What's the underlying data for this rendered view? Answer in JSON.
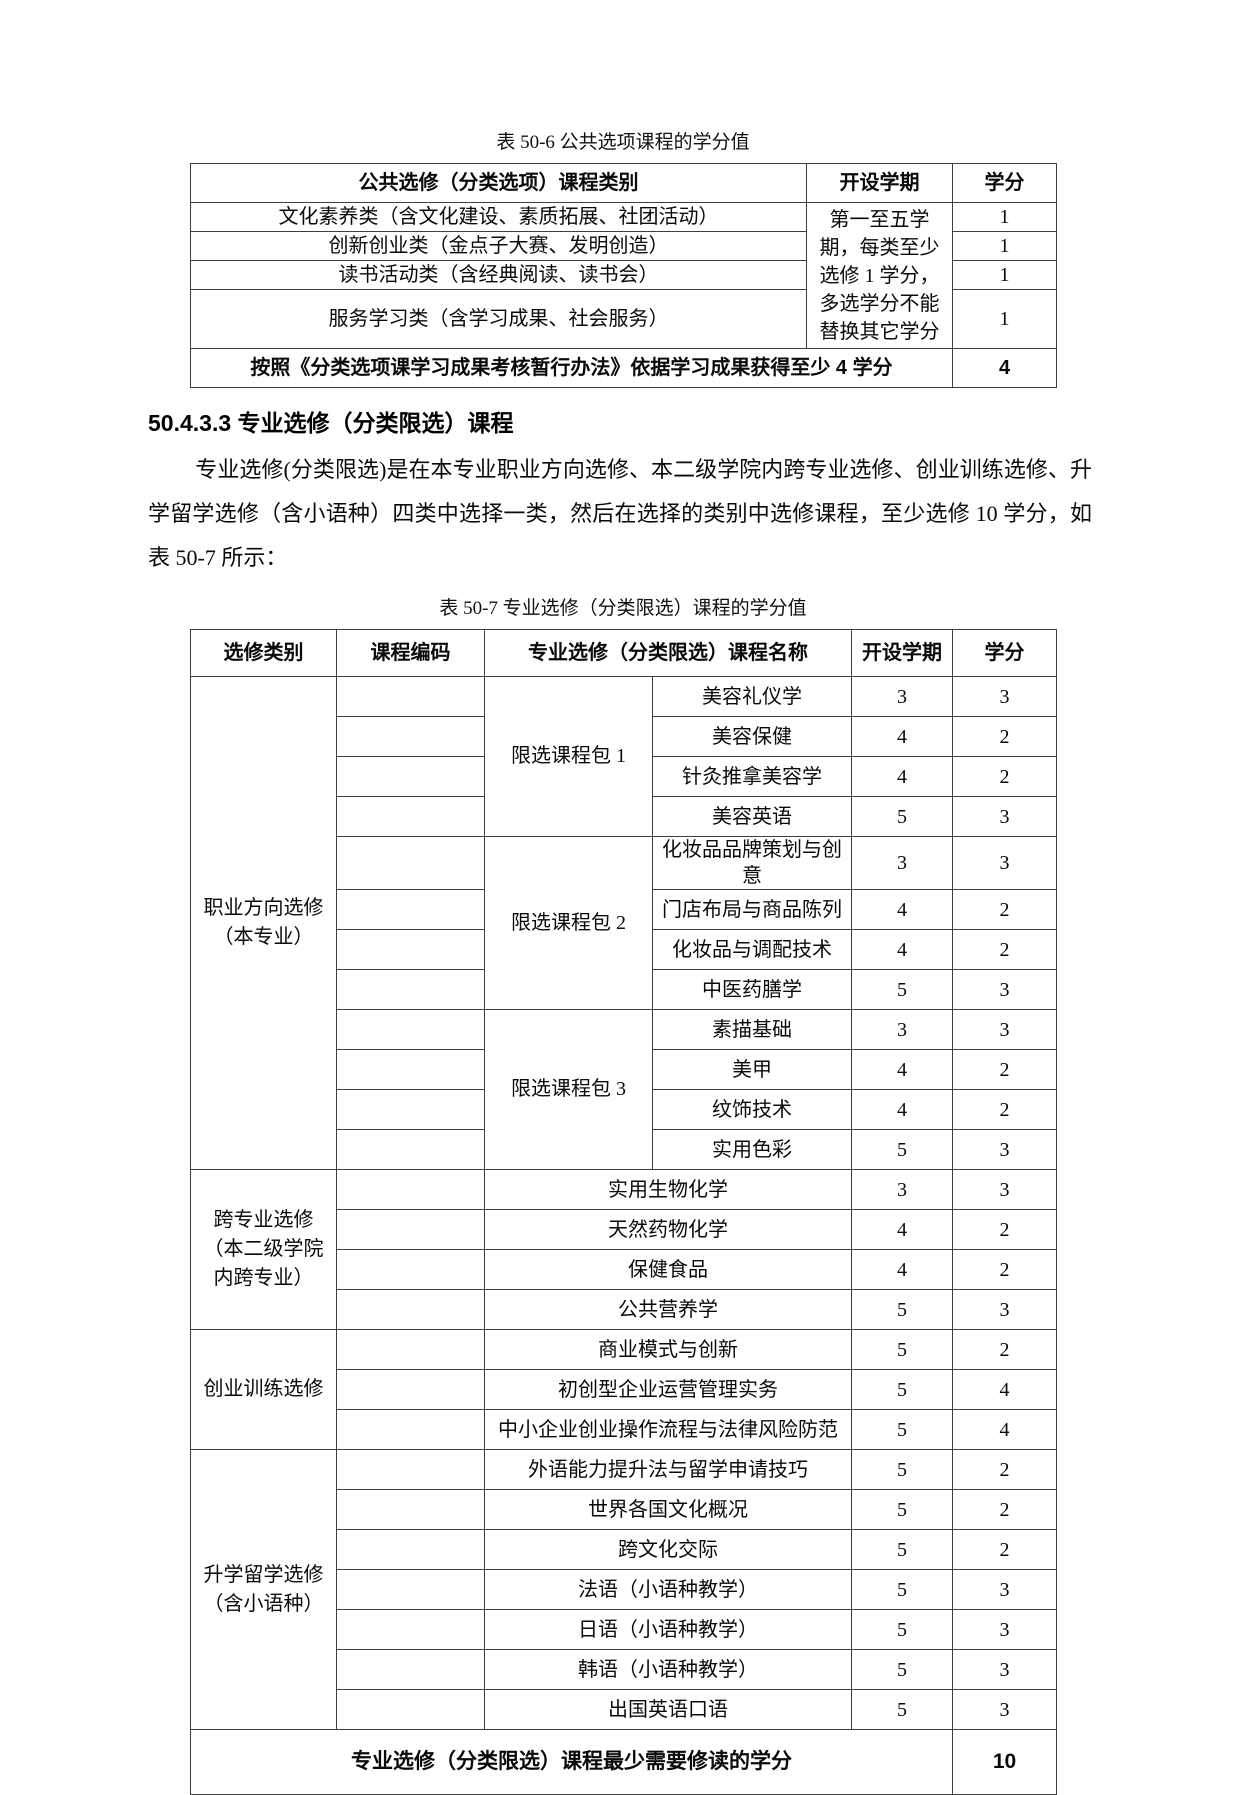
{
  "table1": {
    "title": "表 50-6 公共选项课程的学分值",
    "headers": [
      "公共选修（分类选项）课程类别",
      "开设学期",
      "学分"
    ],
    "rows": [
      {
        "category": "文化素养类（含文化建设、素质拓展、社团活动）",
        "credit": "1"
      },
      {
        "category": "创新创业类（金点子大赛、发明创造）",
        "credit": "1"
      },
      {
        "category": "读书活动类（含经典阅读、读书会）",
        "credit": "1"
      },
      {
        "category": "服务学习类（含学习成果、社会服务）",
        "credit": "1"
      }
    ],
    "semester_note": "第一至五学期，每类至少选修 1 学分，多选学分不能替换其它学分",
    "footer": {
      "label": "按照《分类选项课学习成果考核暂行办法》依据学习成果获得至少 4 学分",
      "credit": "4"
    }
  },
  "section": {
    "heading": "50.4.3.3 专业选修（分类限选）课程",
    "paragraph": "专业选修(分类限选)是在本专业职业方向选修、本二级学院内跨专业选修、创业训练选修、升学留学选修（含小语种）四类中选择一类，然后在选择的类别中选修课程，至少选修 10 学分，如表 50-7 所示："
  },
  "table2": {
    "title": "表 50-7 专业选修（分类限选）课程的学分值",
    "headers": {
      "category": "选修类别",
      "code": "课程编码",
      "course": "专业选修（分类限选）课程名称",
      "semester": "开设学期",
      "credit": "学分"
    },
    "groups": [
      {
        "category": "职业方向选修（本专业）",
        "packages": [
          {
            "name": "限选课程包 1",
            "courses": [
              {
                "name": "美容礼仪学",
                "semester": "3",
                "credit": "3"
              },
              {
                "name": "美容保健",
                "semester": "4",
                "credit": "2"
              },
              {
                "name": "针灸推拿美容学",
                "semester": "4",
                "credit": "2"
              },
              {
                "name": "美容英语",
                "semester": "5",
                "credit": "3"
              }
            ]
          },
          {
            "name": "限选课程包 2",
            "courses": [
              {
                "name": "化妆品品牌策划与创意",
                "semester": "3",
                "credit": "3"
              },
              {
                "name": "门店布局与商品陈列",
                "semester": "4",
                "credit": "2"
              },
              {
                "name": "化妆品与调配技术",
                "semester": "4",
                "credit": "2"
              },
              {
                "name": "中医药膳学",
                "semester": "5",
                "credit": "3"
              }
            ]
          },
          {
            "name": "限选课程包 3",
            "courses": [
              {
                "name": "素描基础",
                "semester": "3",
                "credit": "3"
              },
              {
                "name": "美甲",
                "semester": "4",
                "credit": "2"
              },
              {
                "name": "纹饰技术",
                "semester": "4",
                "credit": "2"
              },
              {
                "name": "实用色彩",
                "semester": "5",
                "credit": "3"
              }
            ]
          }
        ]
      },
      {
        "category": "跨专业选修（本二级学院内跨专业）",
        "courses": [
          {
            "name": "实用生物化学",
            "semester": "3",
            "credit": "3"
          },
          {
            "name": "天然药物化学",
            "semester": "4",
            "credit": "2"
          },
          {
            "name": "保健食品",
            "semester": "4",
            "credit": "2"
          },
          {
            "name": "公共营养学",
            "semester": "5",
            "credit": "3"
          }
        ]
      },
      {
        "category": "创业训练选修",
        "courses": [
          {
            "name": "商业模式与创新",
            "semester": "5",
            "credit": "2"
          },
          {
            "name": "初创型企业运营管理实务",
            "semester": "5",
            "credit": "4"
          },
          {
            "name": "中小企业创业操作流程与法律风险防范",
            "semester": "5",
            "credit": "4"
          }
        ]
      },
      {
        "category": "升学留学选修（含小语种）",
        "courses": [
          {
            "name": "外语能力提升法与留学申请技巧",
            "semester": "5",
            "credit": "2"
          },
          {
            "name": "世界各国文化概况",
            "semester": "5",
            "credit": "2"
          },
          {
            "name": "跨文化交际",
            "semester": "5",
            "credit": "2"
          },
          {
            "name": "法语（小语种教学）",
            "semester": "5",
            "credit": "3"
          },
          {
            "name": "日语（小语种教学）",
            "semester": "5",
            "credit": "3"
          },
          {
            "name": "韩语（小语种教学）",
            "semester": "5",
            "credit": "3"
          },
          {
            "name": "出国英语口语",
            "semester": "5",
            "credit": "3"
          }
        ]
      }
    ],
    "footer": {
      "label": "专业选修（分类限选）课程最少需要修读的学分",
      "credit": "10"
    }
  }
}
